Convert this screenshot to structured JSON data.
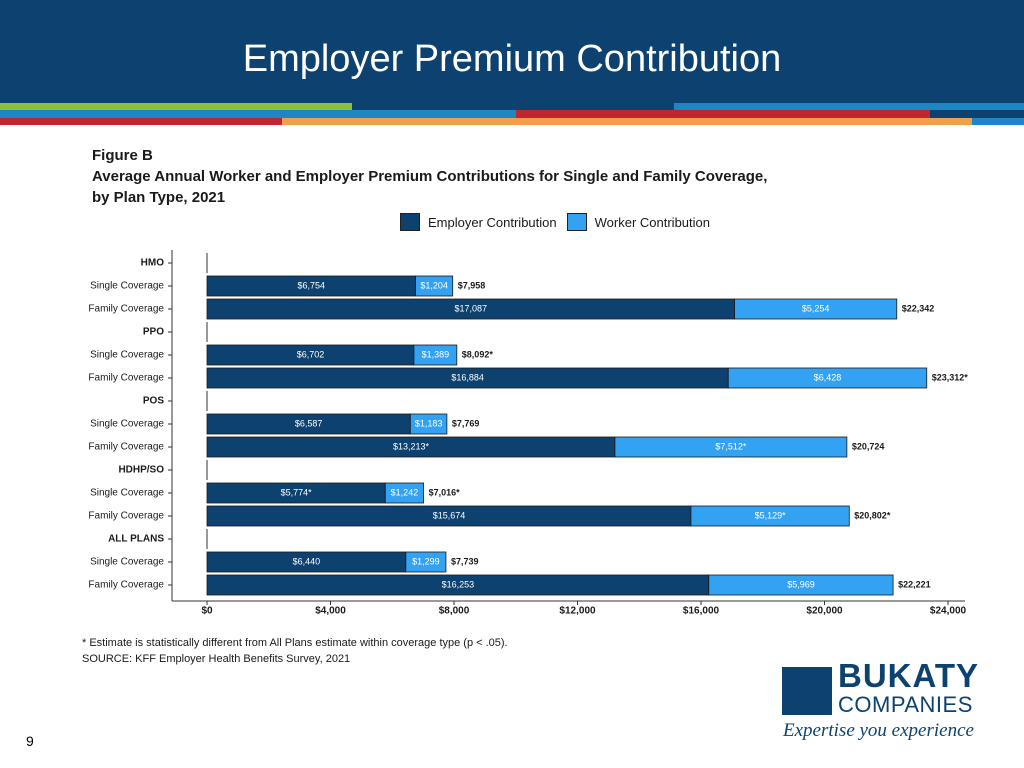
{
  "slide": {
    "title": "Employer Premium Contribution",
    "page_number": "9"
  },
  "figure": {
    "label": "Figure B",
    "title_line1": "Average Annual Worker and Employer Premium Contributions for Single and Family Coverage,",
    "title_line2": "by Plan Type, 2021",
    "footnote1": "* Estimate is statistically different from All Plans estimate within coverage type (p < .05).",
    "footnote2": "SOURCE: KFF Employer Health Benefits Survey, 2021"
  },
  "logo": {
    "top": "BUKATY",
    "bottom": "COMPANIES",
    "tagline": "Expertise you experience"
  },
  "colors": {
    "header_bg": "#0d4170",
    "employer": "#0d4170",
    "worker": "#33a2f2"
  },
  "chart_data": {
    "type": "bar",
    "orientation": "horizontal",
    "stacked": true,
    "legend": [
      "Employer Contribution",
      "Worker Contribution"
    ],
    "legend_position": "top",
    "xlim": [
      0,
      24000
    ],
    "x_ticks": [
      "$0",
      "$4,000",
      "$8,000",
      "$12,000",
      "$16,000",
      "$20,000",
      "$24,000"
    ],
    "x_tick_values": [
      0,
      4000,
      8000,
      12000,
      16000,
      20000,
      24000
    ],
    "grid": false,
    "rows": [
      {
        "label": "HMO",
        "group": true
      },
      {
        "label": "Single Coverage",
        "employer": 6754,
        "worker": 1204,
        "employer_label": "$6,754",
        "worker_label": "$1,204",
        "total_label": "$7,958"
      },
      {
        "label": "Family Coverage",
        "employer": 17087,
        "worker": 5254,
        "employer_label": "$17,087",
        "worker_label": "$5,254",
        "total_label": "$22,342"
      },
      {
        "label": "PPO",
        "group": true
      },
      {
        "label": "Single Coverage",
        "employer": 6702,
        "worker": 1389,
        "employer_label": "$6,702",
        "worker_label": "$1,389",
        "total_label": "$8,092*"
      },
      {
        "label": "Family Coverage",
        "employer": 16884,
        "worker": 6428,
        "employer_label": "$16,884",
        "worker_label": "$6,428",
        "total_label": "$23,312*"
      },
      {
        "label": "POS",
        "group": true
      },
      {
        "label": "Single Coverage",
        "employer": 6587,
        "worker": 1183,
        "employer_label": "$6,587",
        "worker_label": "$1,183",
        "total_label": "$7,769"
      },
      {
        "label": "Family Coverage",
        "employer": 13213,
        "worker": 7512,
        "employer_label": "$13,213*",
        "worker_label": "$7,512*",
        "total_label": "$20,724"
      },
      {
        "label": "HDHP/SO",
        "group": true
      },
      {
        "label": "Single Coverage",
        "employer": 5774,
        "worker": 1242,
        "employer_label": "$5,774*",
        "worker_label": "$1,242",
        "total_label": "$7,016*"
      },
      {
        "label": "Family Coverage",
        "employer": 15674,
        "worker": 5129,
        "employer_label": "$15,674",
        "worker_label": "$5,129*",
        "total_label": "$20,802*"
      },
      {
        "label": "ALL PLANS",
        "group": true
      },
      {
        "label": "Single Coverage",
        "employer": 6440,
        "worker": 1299,
        "employer_label": "$6,440",
        "worker_label": "$1,299",
        "total_label": "$7,739"
      },
      {
        "label": "Family Coverage",
        "employer": 16253,
        "worker": 5969,
        "employer_label": "$16,253",
        "worker_label": "$5,969",
        "total_label": "$22,221"
      }
    ]
  }
}
